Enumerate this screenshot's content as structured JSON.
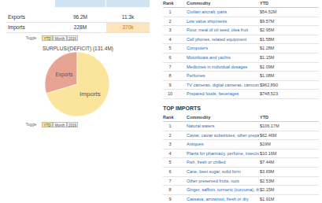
{
  "summary": {
    "rows": [
      [
        "Exports",
        "96.2M",
        "11.3k"
      ],
      [
        "Imports",
        "228M",
        "370k"
      ]
    ]
  },
  "toggle": {
    "label": "Toggle",
    "options": [
      "YTD",
      "Month",
      "2016"
    ]
  },
  "chart_data": {
    "type": "pie",
    "title": "SURPLUS/(DEFICIT) (131.4M)",
    "categories": [
      "Exports",
      "Imports"
    ],
    "values": [
      96.2,
      228
    ],
    "colors": [
      "#e8a493",
      "#fbe49c"
    ]
  },
  "top_exports": {
    "header": [
      "Rank",
      "Commodity",
      "YTD"
    ],
    "rows": [
      [
        "1",
        "Civilian aircraft, parts",
        "$54.52M"
      ],
      [
        "2",
        "Low value shipments",
        "$9.57M"
      ],
      [
        "3",
        "Flour, meal of oil seed, olea fruit",
        "$2.95M"
      ],
      [
        "4",
        "Cell phones, related equipment",
        "$1.58M"
      ],
      [
        "5",
        "Computers",
        "$1.28M"
      ],
      [
        "6",
        "Motorboats and yachts",
        "$1.15M"
      ],
      [
        "7",
        "Medicines in individual dosages",
        "$1.09M"
      ],
      [
        "8",
        "Perfumes",
        "$1.08M"
      ],
      [
        "9",
        "TV cameras, digital cameras, camcorders",
        "$962,890"
      ],
      [
        "10",
        "Prepared foods, beverages",
        "$748,523"
      ]
    ]
  },
  "top_imports": {
    "title": "TOP IMPORTS",
    "header": [
      "Rank",
      "Commodity",
      "YTD"
    ],
    "rows": [
      [
        "1",
        "Natural waters",
        "$106.17M"
      ],
      [
        "2",
        "Caviar, caviar substitutes, other prepared fish",
        "$62.46M"
      ],
      [
        "3",
        "Antiques",
        "$19M"
      ],
      [
        "4",
        "Plants for pharmacy, perfume, insecticides",
        "$10.16M"
      ],
      [
        "5",
        "Fish, fresh or chilled",
        "$7.44M"
      ],
      [
        "6",
        "Cane, beet sugar, solid form",
        "$3.69M"
      ],
      [
        "7",
        "Other preserved fruits, nuts",
        "$2.53M"
      ],
      [
        "8",
        "Ginger, saffron, turmeric (curcuma), thyme, bay le",
        "$2.15M"
      ],
      [
        "9",
        "Cassava, arrowroot, fresh or dry",
        "$1.91M"
      ]
    ]
  }
}
